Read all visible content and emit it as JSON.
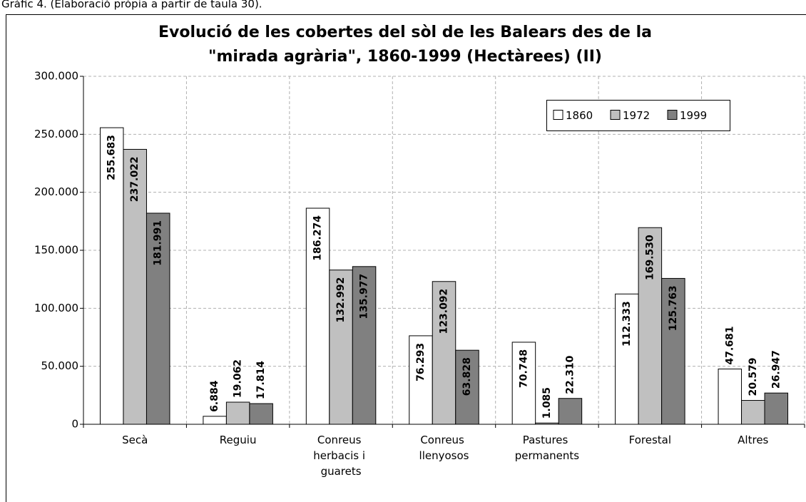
{
  "caption": "Gràfic 4. (Elaboració pròpia a partir de taula 30).",
  "chart_data": {
    "type": "bar",
    "title": [
      "Evolució de les cobertes del sòl de les Balears des de la",
      "\"mirada agrària\", 1860-1999 (Hectàrees) (II)"
    ],
    "categories": [
      "Secà",
      "Reguiu",
      "Conreus herbacis i guarets",
      "Conreus llenyosos",
      "Pastures permanents",
      "Forestal",
      "Altres"
    ],
    "series": [
      {
        "name": "1860",
        "color": "#ffffff",
        "values": [
          255683,
          6884,
          186274,
          76293,
          70748,
          112333,
          47681
        ],
        "value_labels": [
          "255.683",
          "6.884",
          "186.274",
          "76.293",
          "70.748",
          "112.333",
          "47.681"
        ]
      },
      {
        "name": "1972",
        "color": "#c0c0c0",
        "values": [
          237022,
          19062,
          132992,
          123092,
          1085,
          169530,
          20579
        ],
        "value_labels": [
          "237.022",
          "19.062",
          "132.992",
          "123.092",
          "1.085",
          "169.530",
          "20.579"
        ]
      },
      {
        "name": "1999",
        "color": "#808080",
        "values": [
          181991,
          17814,
          135977,
          63828,
          22310,
          125763,
          26947
        ],
        "value_labels": [
          "181.991",
          "17.814",
          "135.977",
          "63.828",
          "22.310",
          "125.763",
          "26.947"
        ]
      }
    ],
    "ylim": [
      0,
      300000
    ],
    "yticks": [
      0,
      {
        "value": 50000,
        "label": "50.000"
      },
      {
        "value": 100000,
        "label": "100.000"
      },
      {
        "value": 150000,
        "label": "150.000"
      },
      {
        "value": 200000,
        "label": "200.000"
      },
      {
        "value": 250000,
        "label": "250.000"
      },
      {
        "value": 300000,
        "label": "300.000"
      }
    ],
    "grid": true,
    "legend": "upper right"
  }
}
